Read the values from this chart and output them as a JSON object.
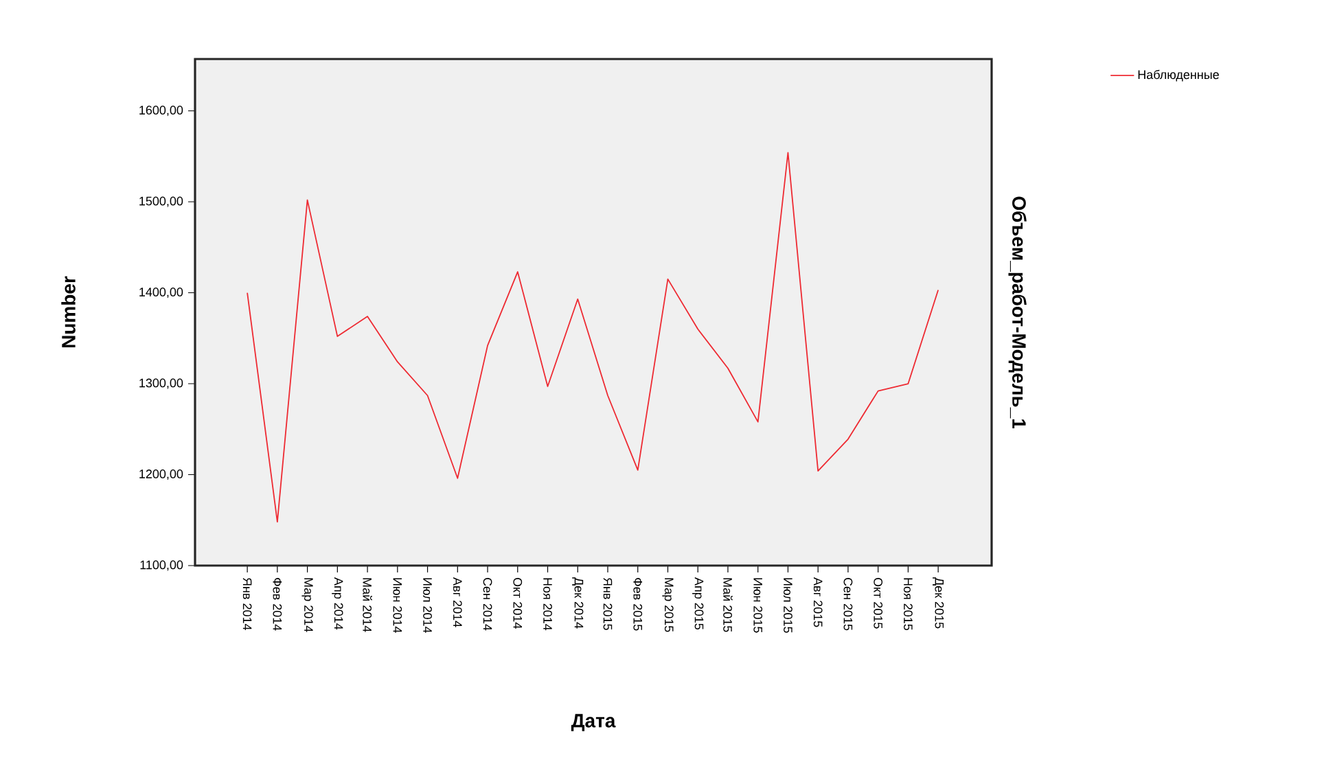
{
  "chart_data": {
    "type": "line",
    "xlabel": "Дата",
    "ylabel": "Number",
    "y2label": "Объем_работ-Модель_1",
    "categories": [
      "Янв 2014",
      "Фев 2014",
      "Мар 2014",
      "Апр 2014",
      "Май 2014",
      "Июн 2014",
      "Июл 2014",
      "Авг 2014",
      "Сен 2014",
      "Окт 2014",
      "Ноя 2014",
      "Дек 2014",
      "Янв 2015",
      "Фев 2015",
      "Мар 2015",
      "Апр 2015",
      "Май 2015",
      "Июн 2015",
      "Июл 2015",
      "Авг 2015",
      "Сен 2015",
      "Окт 2015",
      "Ноя 2015",
      "Дек 2015"
    ],
    "series": [
      {
        "name": "Наблюденные",
        "color": "#ee2a32",
        "values": [
          1400,
          1148,
          1502,
          1352,
          1374,
          1324,
          1287,
          1196,
          1342,
          1423,
          1297,
          1393,
          1287,
          1205,
          1415,
          1360,
          1317,
          1258,
          1554,
          1204,
          1239,
          1292,
          1300,
          1403
        ]
      }
    ],
    "ylim": [
      1100,
      1657
    ],
    "yticks": [
      {
        "value": 1100,
        "label": "1100,00"
      },
      {
        "value": 1200,
        "label": "1200,00"
      },
      {
        "value": 1300,
        "label": "1300,00"
      },
      {
        "value": 1400,
        "label": "1400,00"
      },
      {
        "value": 1500,
        "label": "1500,00"
      },
      {
        "value": 1600,
        "label": "1600,00"
      }
    ],
    "grid": false,
    "legend": "top right",
    "marker": "none",
    "line_style": "solid"
  }
}
